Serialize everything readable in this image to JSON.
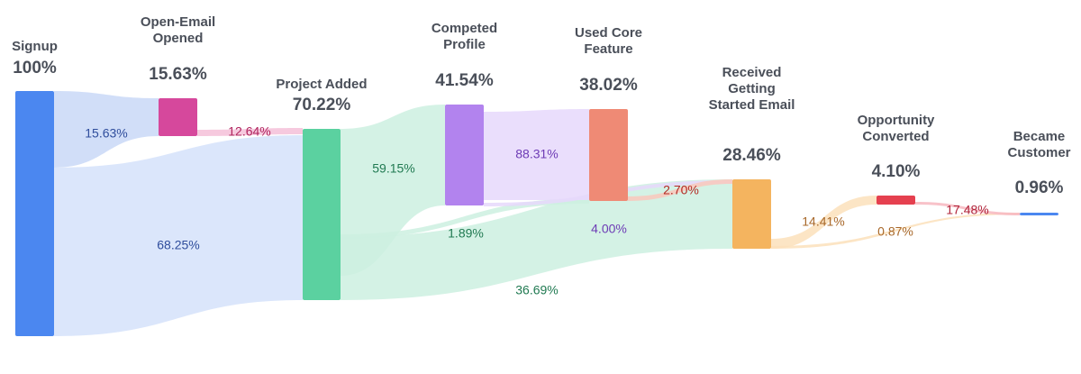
{
  "nodes": [
    {
      "id": "signup",
      "name": "Signup",
      "percent": "100%",
      "color": "#4b87f0"
    },
    {
      "id": "open_email",
      "name": "Open-Email\nOpened",
      "percent": "15.63%",
      "color": "#d6489c"
    },
    {
      "id": "project_added",
      "name": "Project Added",
      "percent": "70.22%",
      "color": "#5bd1a0"
    },
    {
      "id": "completed_profile",
      "name": "Competed\nProfile",
      "percent": "41.54%",
      "color": "#b283ee"
    },
    {
      "id": "used_core",
      "name": "Used Core\nFeature",
      "percent": "38.02%",
      "color": "#ef8a75"
    },
    {
      "id": "received_email",
      "name": "Received\nGetting\nStarted Email",
      "percent": "28.46%",
      "color": "#f4b45f"
    },
    {
      "id": "opportunity",
      "name": "Opportunity\nConverted",
      "percent": "4.10%",
      "color": "#e5404f"
    },
    {
      "id": "customer",
      "name": "Became\nCustomer",
      "percent": "0.96%",
      "color": "#4b87f0"
    }
  ],
  "links": [
    {
      "from": "signup",
      "to": "open_email",
      "label": "15.63%",
      "color": "#c9d8f7",
      "label_color": "#2f4d9c"
    },
    {
      "from": "signup",
      "to": "project_added",
      "label": "68.25%",
      "color": "#d5e2fa",
      "label_color": "#2f4d9c"
    },
    {
      "from": "open_email",
      "to": "project_added",
      "label": "12.64%",
      "color": "#f4bfd8",
      "label_color": "#b0245e"
    },
    {
      "from": "project_added",
      "to": "completed_profile",
      "label": "59.15%",
      "color": "#cdf0e0",
      "label_color": "#217a52"
    },
    {
      "from": "project_added",
      "to": "used_core",
      "label": "1.89%",
      "color": "#cdf0e0",
      "label_color": "#217a52"
    },
    {
      "from": "project_added",
      "to": "received_email",
      "label": "36.69%",
      "color": "#cdf0e0",
      "label_color": "#217a52"
    },
    {
      "from": "completed_profile",
      "to": "used_core",
      "label": "88.31%",
      "color": "#e6d8fb",
      "label_color": "#6d3bb5"
    },
    {
      "from": "completed_profile",
      "to": "received_email",
      "label": "4.00%",
      "color": "#e6d8fb",
      "label_color": "#6d3bb5"
    },
    {
      "from": "used_core",
      "to": "received_email",
      "label": "2.70%",
      "color": "#f9c8bc",
      "label_color": "#b22a23"
    },
    {
      "from": "received_email",
      "to": "opportunity",
      "label": "14.41%",
      "color": "#fbe0bb",
      "label_color": "#a8682a"
    },
    {
      "from": "received_email",
      "to": "customer",
      "label": "0.87%",
      "color": "#fbe0bb",
      "label_color": "#a8682a"
    },
    {
      "from": "opportunity",
      "to": "customer",
      "label": "17.48%",
      "color": "#f7b7bf",
      "label_color": "#b0243a"
    }
  ]
}
